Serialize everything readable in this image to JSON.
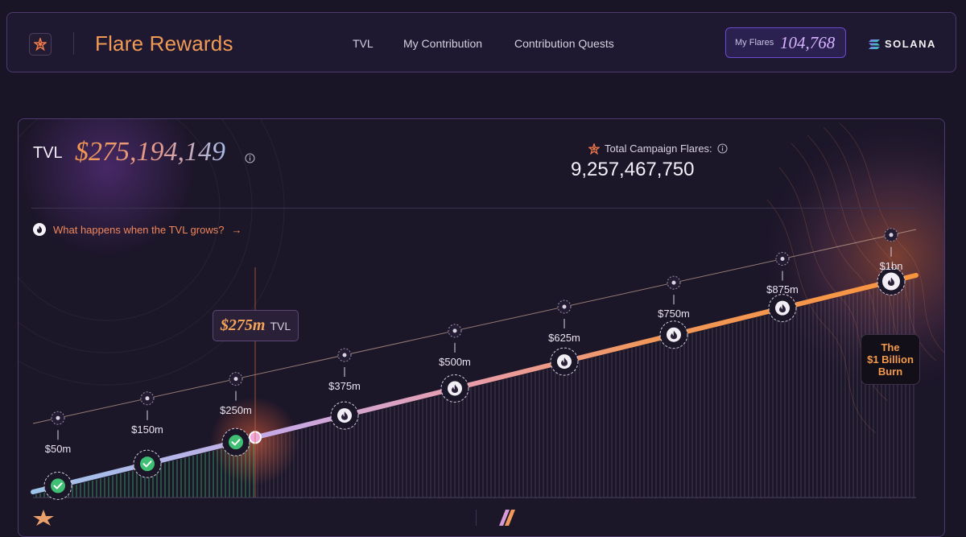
{
  "nav": {
    "brand": "Flare Rewards",
    "links": [
      "TVL",
      "My Contribution",
      "Contribution Quests"
    ],
    "my_flares_label": "My Flares",
    "my_flares_value": "104,768",
    "chain": "SOLANA"
  },
  "panel": {
    "tvl_label": "TVL",
    "tvl_value": "$275,194,149",
    "total_flares_label": "Total Campaign Flares:",
    "total_flares_value": "9,257,467,750",
    "grow_link": "What happens when the TVL grows?",
    "grow_arrow": "→",
    "current_marker_value": "$275m",
    "current_marker_unit": "TVL",
    "burn_lines": [
      "The",
      "$1 Billion",
      "Burn"
    ]
  },
  "milestones": [
    {
      "label": "$50m",
      "value": 50,
      "status": "completed"
    },
    {
      "label": "$150m",
      "value": 150,
      "status": "completed"
    },
    {
      "label": "$250m",
      "value": 250,
      "status": "completed"
    },
    {
      "label": "$375m",
      "value": 375,
      "status": "locked"
    },
    {
      "label": "$500m",
      "value": 500,
      "status": "locked"
    },
    {
      "label": "$625m",
      "value": 625,
      "status": "locked"
    },
    {
      "label": "$750m",
      "value": 750,
      "status": "locked"
    },
    {
      "label": "$875m",
      "value": 875,
      "status": "locked"
    },
    {
      "label": "$1bn",
      "value": 1000,
      "status": "locked"
    }
  ],
  "current_tvl_m": 275,
  "colors": {
    "accent": "#f09a56",
    "completed": "#3fbf73",
    "purple": "#6d4bd0"
  }
}
